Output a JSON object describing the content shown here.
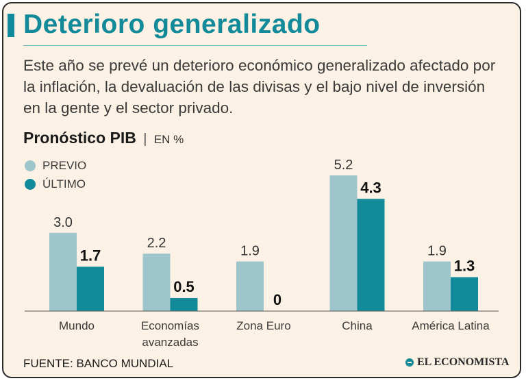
{
  "header": {
    "title": "Deterioro generalizado",
    "intro": "Este año se prevé un deterioro económico generalizado afectado por la inflación, la devaluación de las divisas y el bajo nivel de inversión en la gente y el sector privado."
  },
  "chart_title": {
    "main": "Pronóstico PIB",
    "separator": "|",
    "unit": "EN %"
  },
  "colors": {
    "previo": "#9ec4cc",
    "ultimo": "#138a99",
    "axis": "#555555"
  },
  "chart_data": {
    "type": "bar",
    "title": "Pronóstico PIB",
    "ylabel": "EN %",
    "xlabel": "",
    "categories": [
      "Mundo",
      "Economías avanzadas",
      "Zona Euro",
      "China",
      "América Latina"
    ],
    "category_lines": [
      [
        "Mundo"
      ],
      [
        "Economías",
        "avanzadas"
      ],
      [
        "Zona Euro"
      ],
      [
        "China"
      ],
      [
        "América Latina"
      ]
    ],
    "series": [
      {
        "name": "PREVIO",
        "values": [
          3.0,
          2.2,
          1.9,
          5.2,
          1.9
        ],
        "labels": [
          "3.0",
          "2.2",
          "1.9",
          "5.2",
          "1.9"
        ]
      },
      {
        "name": "ÚLTIMO",
        "values": [
          1.7,
          0.5,
          0,
          4.3,
          1.3
        ],
        "labels": [
          "1.7",
          "0.5",
          "0",
          "4.3",
          "1.3"
        ]
      }
    ],
    "ylim": [
      0,
      5.2
    ],
    "grid": false,
    "legend": "top-left"
  },
  "footer": {
    "source": "FUENTE: BANCO MUNDIAL",
    "brand": "EL ECONOMISTA"
  }
}
